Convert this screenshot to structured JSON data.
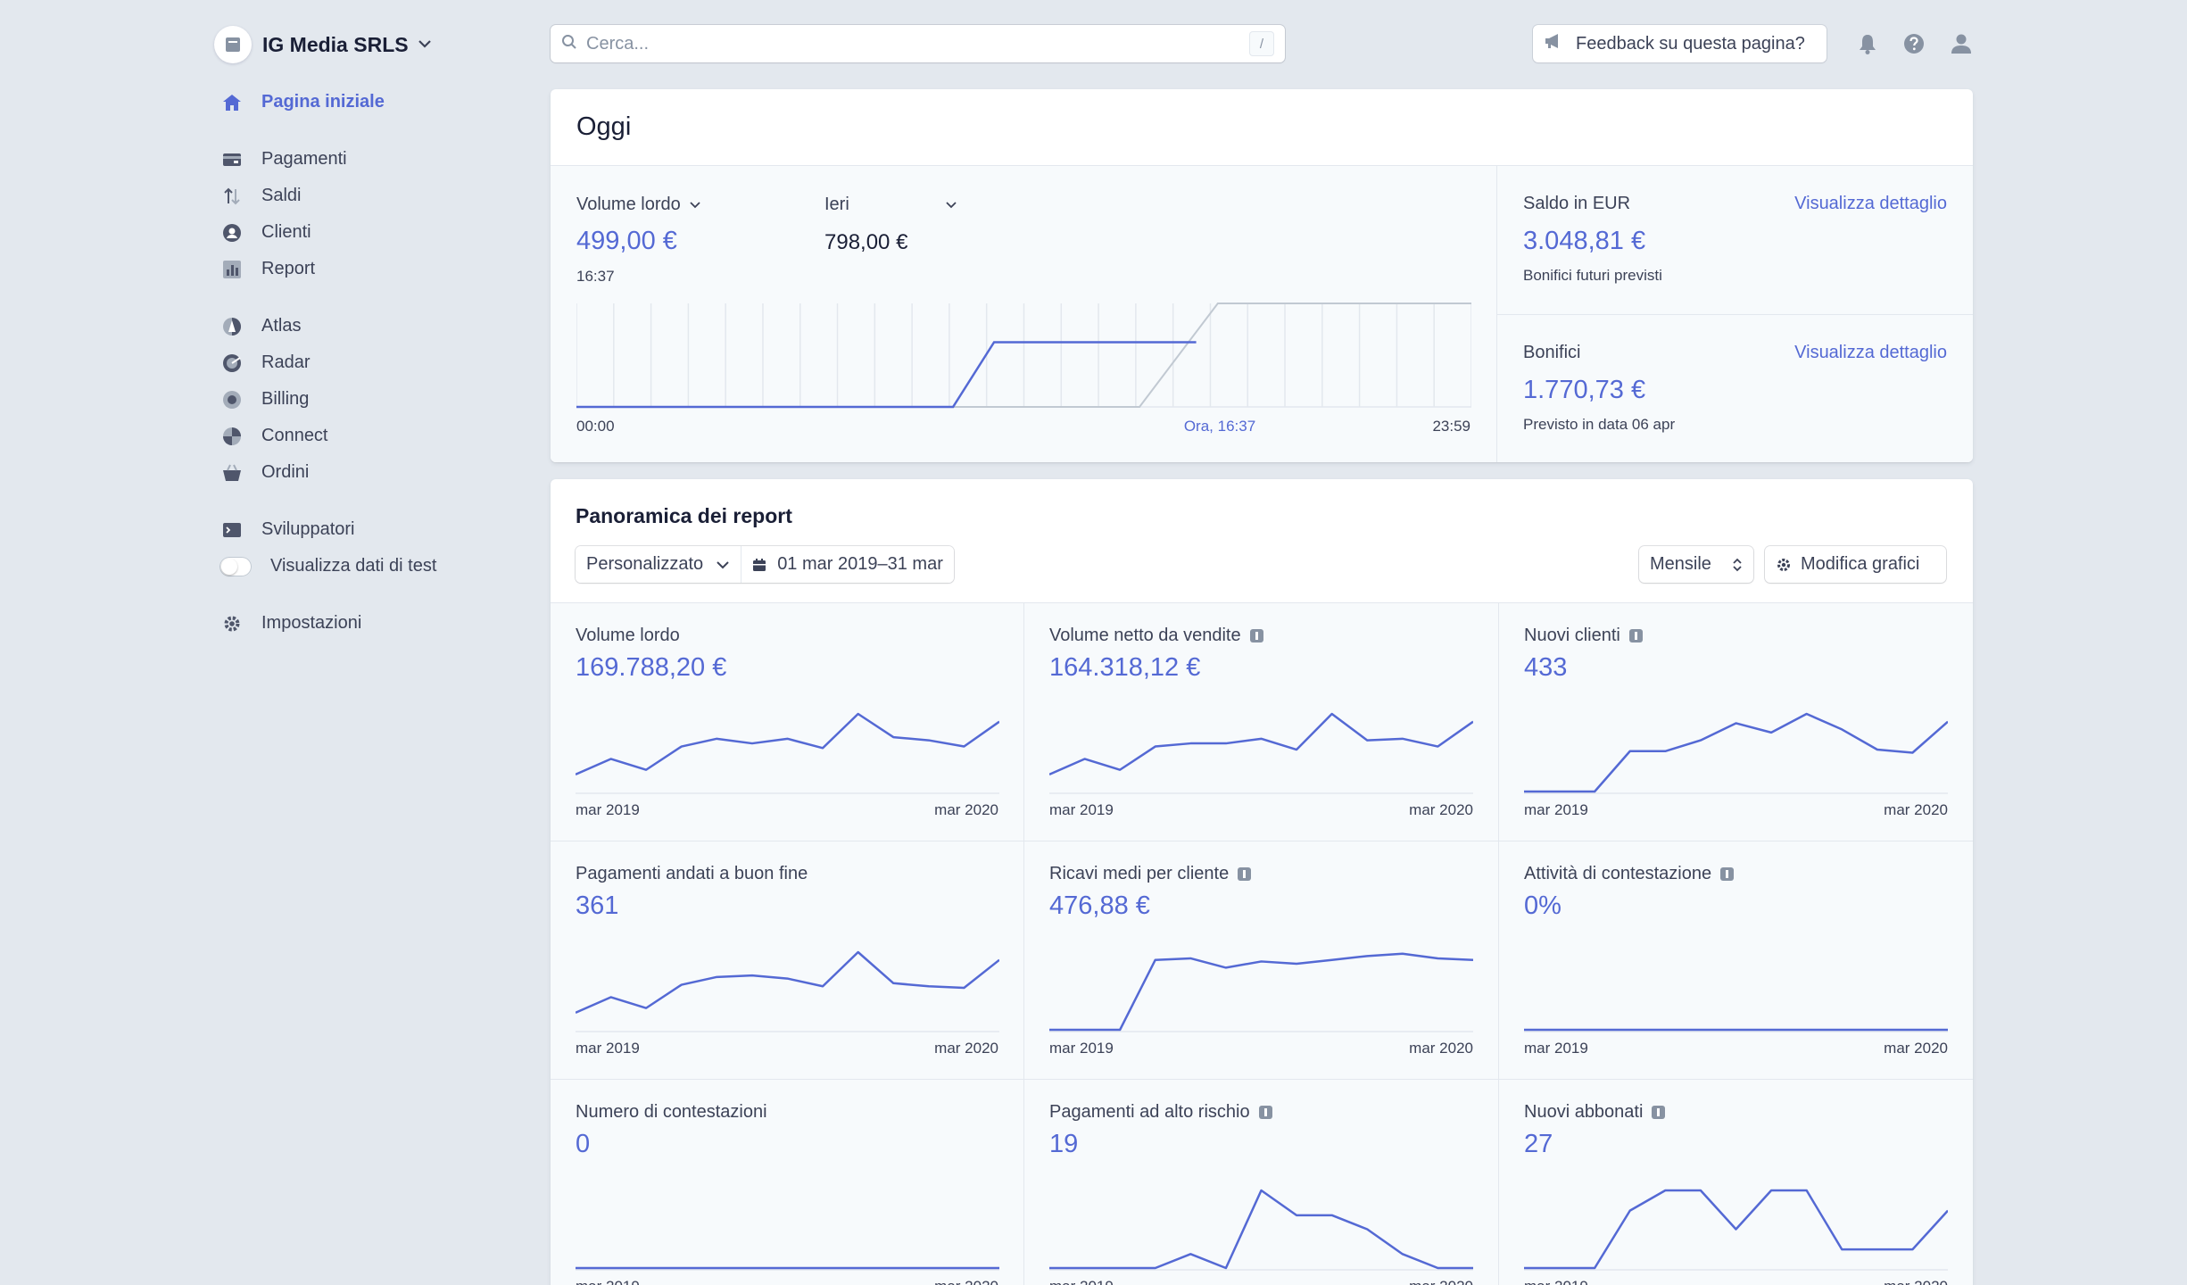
{
  "account": {
    "name": "IG Media SRLS"
  },
  "nav": [
    [
      {
        "label": "Pagina iniziale",
        "name": "nav-home",
        "icon": "home-icon",
        "active": true
      }
    ],
    [
      {
        "label": "Pagamenti",
        "name": "nav-payments",
        "icon": "card-icon"
      },
      {
        "label": "Saldi",
        "name": "nav-balances",
        "icon": "arrows-updown-icon"
      },
      {
        "label": "Clienti",
        "name": "nav-customers",
        "icon": "user-circle-icon"
      },
      {
        "label": "Report",
        "name": "nav-reports",
        "icon": "bar-chart-icon"
      }
    ],
    [
      {
        "label": "Atlas",
        "name": "nav-atlas",
        "icon": "atlas-icon"
      },
      {
        "label": "Radar",
        "name": "nav-radar",
        "icon": "radar-icon"
      },
      {
        "label": "Billing",
        "name": "nav-billing",
        "icon": "billing-icon"
      },
      {
        "label": "Connect",
        "name": "nav-connect",
        "icon": "connect-icon"
      },
      {
        "label": "Ordini",
        "name": "nav-orders",
        "icon": "basket-icon"
      }
    ],
    [
      {
        "label": "Sviluppatori",
        "name": "nav-developers",
        "icon": "terminal-icon"
      },
      {
        "label": "Visualizza dati di test",
        "name": "nav-test-data",
        "toggle": true
      }
    ],
    [
      {
        "label": "Impostazioni",
        "name": "nav-settings",
        "icon": "gear-icon"
      }
    ]
  ],
  "search": {
    "placeholder": "Cerca...",
    "shortcut": "/"
  },
  "feedback": {
    "label": "Feedback su questa pagina?"
  },
  "today": {
    "title": "Oggi",
    "metric_label": "Volume lordo",
    "compare_label": "Ieri",
    "metric_value": "499,00 €",
    "compare_value": "798,00 €",
    "time": "16:37",
    "axis_start": "00:00",
    "axis_now": "Ora, 16:37",
    "axis_end": "23:59",
    "chart_data": {
      "type": "line",
      "x_hours": [
        0,
        10.1,
        11.2,
        16.62
      ],
      "today": [
        0,
        0,
        499,
        499
      ],
      "yesterday_x_hours": [
        0,
        15.1,
        17.2,
        24
      ],
      "yesterday": [
        0,
        0,
        798,
        798
      ],
      "ylim": [
        0,
        798
      ],
      "grid": true
    },
    "balance": {
      "label": "Saldo in EUR",
      "link": "Visualizza dettaglio",
      "value": "3.048,81 €",
      "sub": "Bonifici futuri previsti"
    },
    "payouts": {
      "label": "Bonifici",
      "link": "Visualizza dettaglio",
      "value": "1.770,73 €",
      "sub": "Previsto in data 06 apr"
    }
  },
  "report": {
    "title": "Panoramica dei report",
    "range_type": "Personalizzato",
    "date_range": "01 mar 2019–31 mar",
    "period": "Mensile",
    "edit_label": "Modifica grafici",
    "axis_start": "mar 2019",
    "axis_end": "mar 2020"
  },
  "chart_data": [
    {
      "type": "line",
      "title": "Volume lordo",
      "value": "169.788,20 €",
      "info": false,
      "values": [
        0.22,
        0.42,
        0.28,
        0.58,
        0.68,
        0.62,
        0.68,
        0.56,
        1.0,
        0.7,
        0.66,
        0.58,
        0.9
      ]
    },
    {
      "type": "line",
      "title": "Volume netto da vendite",
      "value": "164.318,12 €",
      "info": true,
      "values": [
        0.22,
        0.42,
        0.28,
        0.58,
        0.62,
        0.62,
        0.68,
        0.54,
        1.0,
        0.66,
        0.68,
        0.58,
        0.9
      ]
    },
    {
      "type": "line",
      "title": "Nuovi clienti",
      "value": "433",
      "info": true,
      "values": [
        0,
        0,
        0,
        0.52,
        0.52,
        0.66,
        0.88,
        0.76,
        1.0,
        0.8,
        0.54,
        0.5,
        0.9
      ]
    },
    {
      "type": "line",
      "title": "Pagamenti andati a buon fine",
      "value": "361",
      "info": false,
      "values": [
        0.22,
        0.42,
        0.28,
        0.58,
        0.68,
        0.7,
        0.66,
        0.56,
        1.0,
        0.6,
        0.56,
        0.54,
        0.9
      ]
    },
    {
      "type": "line",
      "title": "Ricavi medi per cliente",
      "value": "476,88 €",
      "info": true,
      "values": [
        0,
        0,
        0,
        0.9,
        0.92,
        0.8,
        0.88,
        0.85,
        0.9,
        0.95,
        0.98,
        0.92,
        0.9
      ]
    },
    {
      "type": "line",
      "title": "Attività di contestazione",
      "value": "0%",
      "info": true,
      "values": [
        0,
        0,
        0,
        0,
        0,
        0,
        0,
        0,
        0,
        0,
        0,
        0,
        0
      ]
    },
    {
      "type": "line",
      "title": "Numero di contestazioni",
      "value": "0",
      "info": false,
      "values": [
        0,
        0,
        0,
        0,
        0,
        0,
        0,
        0,
        0,
        0,
        0,
        0,
        0
      ]
    },
    {
      "type": "line",
      "title": "Pagamenti ad alto rischio",
      "value": "19",
      "info": true,
      "values": [
        0,
        0,
        0,
        0,
        0.18,
        0,
        1.0,
        0.68,
        0.68,
        0.5,
        0.18,
        0,
        0
      ]
    },
    {
      "type": "line",
      "title": "Nuovi abbonati",
      "value": "27",
      "info": true,
      "values": [
        0,
        0,
        0,
        0.74,
        1.0,
        1.0,
        0.5,
        1.0,
        1.0,
        0.24,
        0.24,
        0.24,
        0.74
      ]
    }
  ],
  "colors": {
    "accent": "#5469d4",
    "background": "#e3e8ee",
    "text": "#3c4257",
    "grid": "#e3e8ee",
    "yesterday": "#c1c9d2"
  }
}
